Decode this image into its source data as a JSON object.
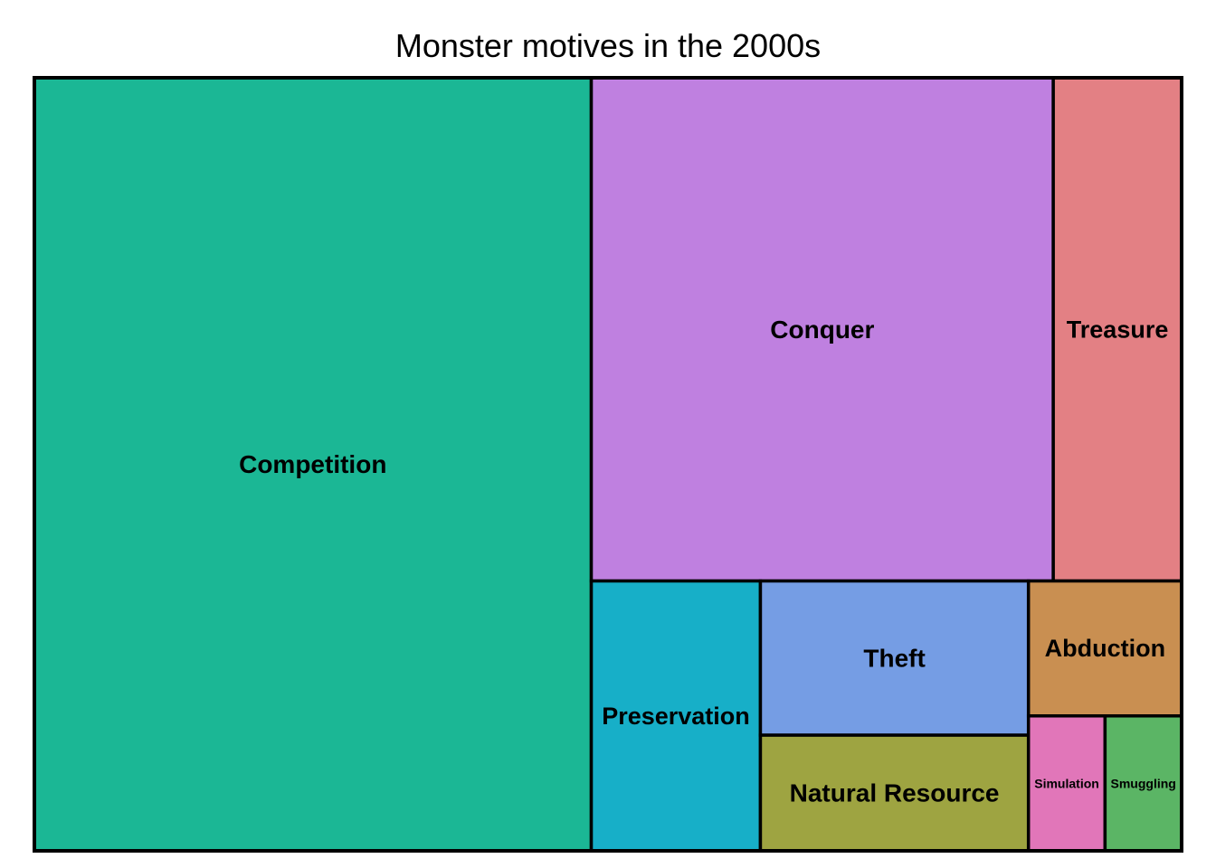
{
  "chart_data": {
    "type": "treemap",
    "title": "Monster motives in the 2000s",
    "items": [
      {
        "label": "Competition",
        "value": 50.0,
        "color": "#1BB795"
      },
      {
        "label": "Conquer",
        "value": 27.0,
        "color": "#BF80E0"
      },
      {
        "label": "Treasure",
        "value": 7.5,
        "color": "#E38084"
      },
      {
        "label": "Preservation",
        "value": 5.3,
        "color": "#17AFC8"
      },
      {
        "label": "Theft",
        "value": 4.8,
        "color": "#759DE4"
      },
      {
        "label": "Natural Resource",
        "value": 3.6,
        "color": "#9EA441"
      },
      {
        "label": "Abduction",
        "value": 2.4,
        "color": "#C98F51"
      },
      {
        "label": "Simulation",
        "value": 1.2,
        "color": "#E176B9"
      },
      {
        "label": "Smuggling",
        "value": 1.2,
        "color": "#5BB565"
      }
    ]
  }
}
